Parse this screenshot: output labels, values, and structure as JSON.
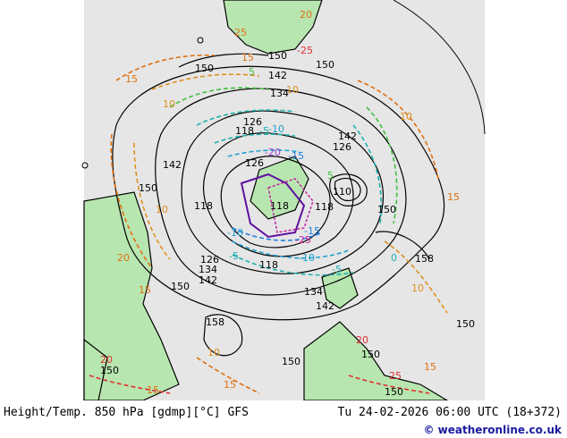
{
  "map": {
    "geopotential_contours_dam": [
      "110",
      "118",
      "126",
      "134",
      "142",
      "150",
      "158"
    ],
    "black_labels": [
      {
        "text": "150"
      },
      {
        "text": "150"
      },
      {
        "text": "150"
      },
      {
        "text": "142"
      },
      {
        "text": "134"
      },
      {
        "text": "126"
      },
      {
        "text": "118"
      },
      {
        "text": "142"
      },
      {
        "text": "126"
      },
      {
        "text": "142"
      },
      {
        "text": "150"
      },
      {
        "text": "126"
      },
      {
        "text": "110"
      },
      {
        "text": "150"
      },
      {
        "text": "118"
      },
      {
        "text": "118"
      },
      {
        "text": "118"
      },
      {
        "text": "126"
      },
      {
        "text": "134"
      },
      {
        "text": "142"
      },
      {
        "text": "150"
      },
      {
        "text": "118"
      },
      {
        "text": "158"
      },
      {
        "text": "134"
      },
      {
        "text": "142"
      },
      {
        "text": "158"
      },
      {
        "text": "150"
      },
      {
        "text": "150"
      },
      {
        "text": "150"
      },
      {
        "text": "150"
      },
      {
        "text": "150"
      }
    ],
    "temperature_labels": [
      {
        "text": "25",
        "color": "#e07010"
      },
      {
        "text": "20",
        "color": "#e07010"
      },
      {
        "text": "-25",
        "color": "#e03030"
      },
      {
        "text": "15",
        "color": "#e07010"
      },
      {
        "text": "15",
        "color": "#e07010"
      },
      {
        "text": "10",
        "color": "#e09020"
      },
      {
        "text": "10",
        "color": "#e09020"
      },
      {
        "text": "5",
        "color": "#40c040"
      },
      {
        "text": "0",
        "color": "#20b0b0"
      },
      {
        "text": "-5",
        "color": "#20b0b0"
      },
      {
        "text": "-10",
        "color": "#20a0d0"
      },
      {
        "text": "-15",
        "color": "#2080e0"
      },
      {
        "text": "-20",
        "color": "#a040d0"
      },
      {
        "text": "-25",
        "color": "#d020a0"
      },
      {
        "text": "-10",
        "color": "#20a0d0"
      },
      {
        "text": "-15",
        "color": "#2080e0"
      },
      {
        "text": "-5",
        "color": "#20b0b0"
      },
      {
        "text": "10",
        "color": "#e09020"
      },
      {
        "text": "15",
        "color": "#e07010"
      },
      {
        "text": "20",
        "color": "#e07010"
      },
      {
        "text": "20",
        "color": "#e07010"
      },
      {
        "text": "15",
        "color": "#e07010"
      },
      {
        "text": "10",
        "color": "#e09020"
      },
      {
        "text": "15",
        "color": "#e07010"
      },
      {
        "text": "20",
        "color": "#e07010"
      },
      {
        "text": "25",
        "color": "#e07010"
      },
      {
        "text": "10",
        "color": "#e09020"
      },
      {
        "text": "5",
        "color": "#40c040"
      },
      {
        "text": "10",
        "color": "#e09020"
      },
      {
        "text": "15",
        "color": "#e07010"
      },
      {
        "text": "-5",
        "color": "#20b0b0"
      },
      {
        "text": "-10",
        "color": "#20a0d0"
      },
      {
        "text": "15",
        "color": "#e07010"
      }
    ],
    "colors": {
      "ocean": "#e6e6e6",
      "land": "#b8e6b0",
      "background": "#ffffff",
      "height_contour": "#000000"
    }
  },
  "footer": {
    "title": "Height/Temp. 850 hPa [gdmp][°C] GFS",
    "date": "Tu 24-02-2026 06:00 UTC (18+372)",
    "brand": "© weatheronline.co.uk"
  }
}
